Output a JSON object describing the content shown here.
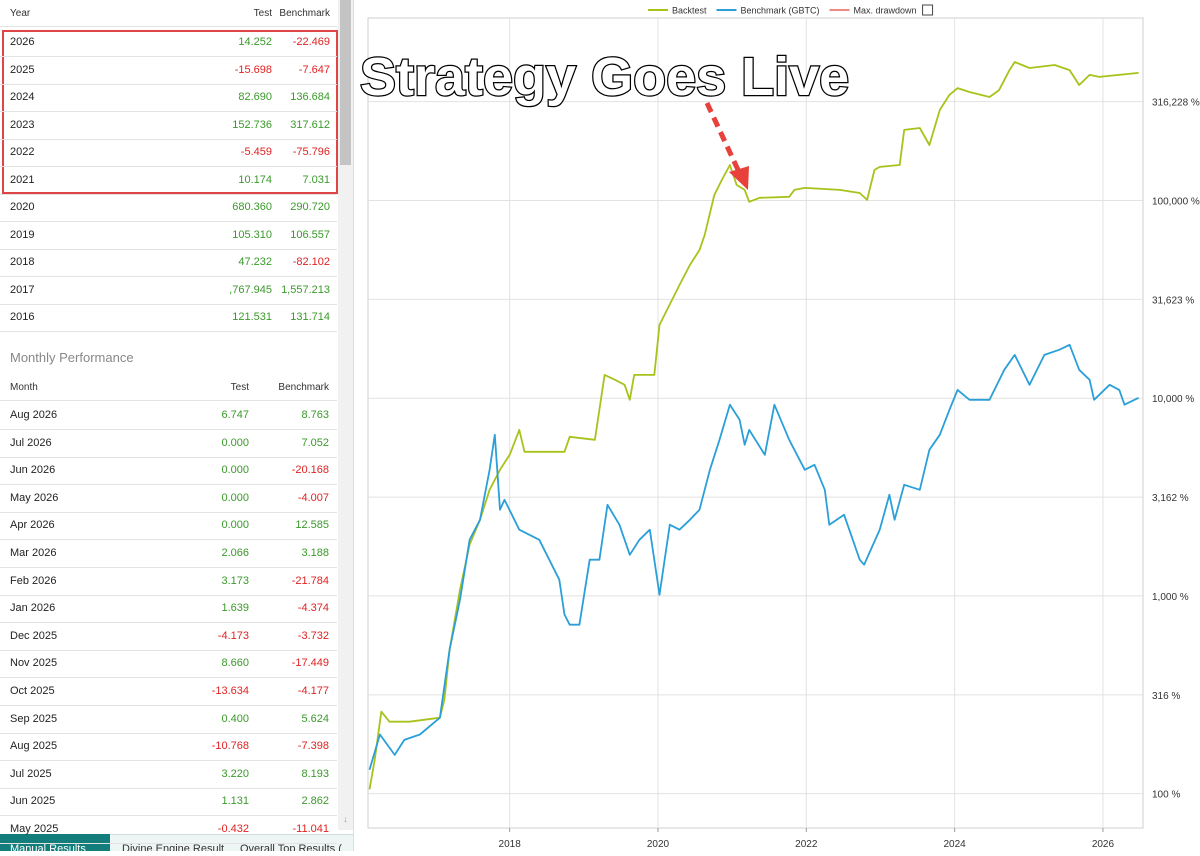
{
  "yearly": {
    "headers": [
      "Year",
      "Test",
      "Benchmark"
    ],
    "rows": [
      [
        "2026",
        "14.252",
        "-22.469"
      ],
      [
        "2025",
        "-15.698",
        "-7.647"
      ],
      [
        "2024",
        "82.690",
        "136.684"
      ],
      [
        "2023",
        "152.736",
        "317.612"
      ],
      [
        "2022",
        "-5.459",
        "-75.796"
      ],
      [
        "2021",
        "10.174",
        "7.031"
      ],
      [
        "2020",
        "680.360",
        "290.720"
      ],
      [
        "2019",
        "105.310",
        "106.557"
      ],
      [
        "2018",
        "47.232",
        "-82.102"
      ],
      [
        "2017",
        ",767.945",
        "1,557.213"
      ],
      [
        "2016",
        "121.531",
        "131.714"
      ]
    ]
  },
  "monthly": {
    "title": "Monthly Performance",
    "headers": [
      "Month",
      "Test",
      "Benchmark"
    ],
    "rows": [
      [
        "Aug 2026",
        "6.747",
        "8.763"
      ],
      [
        "Jul 2026",
        "0.000",
        "7.052"
      ],
      [
        "Jun 2026",
        "0.000",
        "-20.168"
      ],
      [
        "May 2026",
        "0.000",
        "-4.007"
      ],
      [
        "Apr 2026",
        "0.000",
        "12.585"
      ],
      [
        "Mar 2026",
        "2.066",
        "3.188"
      ],
      [
        "Feb 2026",
        "3.173",
        "-21.784"
      ],
      [
        "Jan 2026",
        "1.639",
        "-4.374"
      ],
      [
        "Dec 2025",
        "-4.173",
        "-3.732"
      ],
      [
        "Nov 2025",
        "8.660",
        "-17.449"
      ],
      [
        "Oct 2025",
        "-13.634",
        "-4.177"
      ],
      [
        "Sep 2025",
        "0.400",
        "5.624"
      ],
      [
        "Aug 2025",
        "-10.768",
        "-7.398"
      ],
      [
        "Jul 2025",
        "3.220",
        "8.193"
      ],
      [
        "Jun 2025",
        "1.131",
        "2.862"
      ],
      [
        "May 2025",
        "-0.432",
        "-11.041"
      ]
    ]
  },
  "tabs": [
    "Manual Results",
    "Divine Engine Result",
    "Overall Top Results ("
  ],
  "chart_data": {
    "type": "line",
    "annotation": "Strategy Goes Live",
    "log_scale": true,
    "grid": true,
    "legend": "top",
    "xlim": [
      2016.09,
      2026.54
    ],
    "xticks": [
      2018,
      2020,
      2022,
      2024,
      2026
    ],
    "ylim": [
      67,
      838000
    ],
    "yticks": [
      {
        "value": 100,
        "label": "100 %"
      },
      {
        "value": 316,
        "label": "316 %"
      },
      {
        "value": 1000,
        "label": "1,000 %"
      },
      {
        "value": 3162,
        "label": "3,162 %"
      },
      {
        "value": 10000,
        "label": "10,000 %"
      },
      {
        "value": 31623,
        "label": "31,623 %"
      },
      {
        "value": 100000,
        "label": "100,000 %"
      },
      {
        "value": 316228,
        "label": "316,228 %"
      }
    ],
    "series": [
      {
        "name": "Backtest",
        "color": "#a9c21b",
        "x": [
          2016.11,
          2016.18,
          2016.27,
          2016.38,
          2016.65,
          2017.06,
          2017.12,
          2017.19,
          2017.33,
          2017.46,
          2017.6,
          2017.73,
          2017.87,
          2018.0,
          2018.13,
          2018.2,
          2018.4,
          2018.74,
          2018.81,
          2019.15,
          2019.28,
          2019.42,
          2019.55,
          2019.62,
          2019.68,
          2019.95,
          2020.02,
          2020.29,
          2020.43,
          2020.56,
          2020.63,
          2020.76,
          2020.86,
          2020.97,
          2021.06,
          2021.17,
          2021.23,
          2021.37,
          2021.77,
          2021.84,
          2021.98,
          2022.45,
          2022.72,
          2022.82,
          2022.92,
          2022.99,
          2023.26,
          2023.32,
          2023.53,
          2023.66,
          2023.8,
          2023.93,
          2024.04,
          2024.2,
          2024.47,
          2024.6,
          2024.74,
          2024.81,
          2025.01,
          2025.35,
          2025.55,
          2025.68,
          2025.82,
          2025.95,
          2026.48
        ],
        "values": [
          105,
          148,
          260,
          231,
          231,
          242,
          299,
          535,
          1075,
          1815,
          2427,
          3442,
          4343,
          5172,
          6918,
          5355,
          5355,
          5355,
          6381,
          6161,
          13120,
          12390,
          11690,
          9821,
          13120,
          13120,
          23500,
          37400,
          47200,
          56200,
          67000,
          106700,
          127000,
          151300,
          120000,
          113200,
          98500,
          103200,
          104400,
          113200,
          115900,
          113200,
          109200,
          100700,
          142900,
          147900,
          151300,
          227500,
          232800,
          191000,
          287000,
          342000,
          370600,
          354000,
          334000,
          362000,
          457000,
          502000,
          468000,
          485000,
          457000,
          384000,
          432000,
          422000,
          442000
        ]
      },
      {
        "name": "Benchmark (GBTC)",
        "color": "#2a9fd8",
        "x": [
          2016.11,
          2016.25,
          2016.45,
          2016.58,
          2016.79,
          2017.06,
          2017.19,
          2017.33,
          2017.46,
          2017.6,
          2017.73,
          2017.8,
          2017.87,
          2017.93,
          2018.13,
          2018.4,
          2018.67,
          2018.74,
          2018.81,
          2018.94,
          2019.08,
          2019.21,
          2019.32,
          2019.48,
          2019.62,
          2019.75,
          2019.89,
          2019.95,
          2020.02,
          2020.16,
          2020.29,
          2020.43,
          2020.56,
          2020.7,
          2020.83,
          2020.97,
          2021.1,
          2021.17,
          2021.23,
          2021.44,
          2021.57,
          2021.77,
          2021.98,
          2022.11,
          2022.25,
          2022.31,
          2022.51,
          2022.72,
          2022.78,
          2022.99,
          2023.12,
          2023.19,
          2023.32,
          2023.53,
          2023.66,
          2023.8,
          2023.93,
          2024.04,
          2024.2,
          2024.47,
          2024.67,
          2024.81,
          2025.01,
          2025.21,
          2025.41,
          2025.55,
          2025.68,
          2025.82,
          2025.88,
          2026.09,
          2026.22,
          2026.29,
          2026.48
        ],
        "values": [
          132,
          199,
          157,
          187,
          199,
          242,
          535,
          957,
          1923,
          2427,
          4343,
          6531,
          2729,
          3063,
          2163,
          1923,
          1208,
          804,
          715,
          715,
          1524,
          1524,
          2891,
          2291,
          1614,
          1923,
          2163,
          1524,
          1014,
          2291,
          2163,
          2427,
          2729,
          4343,
          6161,
          9268,
          7783,
          5810,
          6918,
          5172,
          9268,
          6161,
          4343,
          4603,
          3442,
          2291,
          2572,
          1524,
          1439,
          2163,
          3248,
          2427,
          3648,
          3442,
          5483,
          6531,
          8733,
          11020,
          9821,
          9821,
          13930,
          16560,
          11690,
          16560,
          17580,
          18620,
          13930,
          12390,
          9821,
          11690,
          11020,
          9268,
          10050
        ]
      },
      {
        "name": "Max. drawdown",
        "color": "#f08a84",
        "x": [],
        "values": []
      }
    ]
  }
}
